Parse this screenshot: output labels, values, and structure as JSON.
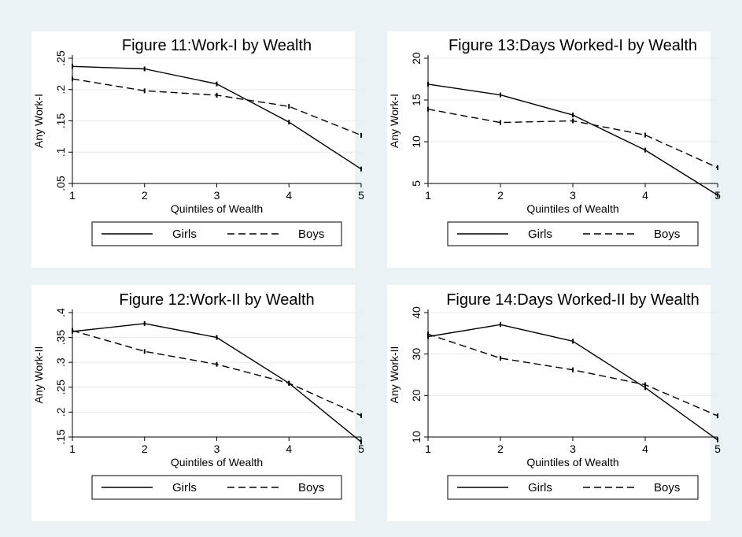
{
  "chart_data": [
    {
      "type": "line",
      "title": "Figure 11:Work-I by Wealth",
      "xlabel": "Quintiles of Wealth",
      "ylabel": "Any Work-I",
      "x": [
        1,
        2,
        3,
        4,
        5
      ],
      "xticks": [
        "1",
        "2",
        "3",
        "4",
        "5"
      ],
      "yticks": [
        ".05",
        ".1",
        ".15",
        ".2",
        ".25"
      ],
      "ylim": [
        0.05,
        0.25
      ],
      "series": [
        {
          "name": "Girls",
          "style": "solid",
          "values": [
            0.237,
            0.233,
            0.209,
            0.148,
            0.073
          ]
        },
        {
          "name": "Boys",
          "style": "dashed",
          "values": [
            0.217,
            0.198,
            0.191,
            0.173,
            0.127
          ]
        }
      ],
      "legend": {
        "position": "bottom"
      }
    },
    {
      "type": "line",
      "title": "Figure 13:Days Worked-I by Wealth",
      "xlabel": "Quintiles of Wealth",
      "ylabel": "Any Work-I",
      "x": [
        1,
        2,
        3,
        4,
        5
      ],
      "xticks": [
        "1",
        "2",
        "3",
        "4",
        "5"
      ],
      "yticks": [
        "5",
        "10",
        "15",
        "20"
      ],
      "ylim": [
        5,
        20
      ],
      "series": [
        {
          "name": "Girls",
          "style": "solid",
          "values": [
            16.9,
            15.6,
            13.2,
            9.0,
            3.6
          ]
        },
        {
          "name": "Boys",
          "style": "dashed",
          "values": [
            13.9,
            12.3,
            12.5,
            10.8,
            6.9
          ]
        }
      ],
      "legend": {
        "position": "bottom"
      }
    },
    {
      "type": "line",
      "title": "Figure 12:Work-II by Wealth",
      "xlabel": "Quintiles of Wealth",
      "ylabel": "Any Work-II",
      "x": [
        1,
        2,
        3,
        4,
        5
      ],
      "xticks": [
        "1",
        "2",
        "3",
        "4",
        "5"
      ],
      "yticks": [
        ".15",
        ".2",
        ".25",
        ".3",
        ".35",
        ".4"
      ],
      "ylim": [
        0.15,
        0.4
      ],
      "series": [
        {
          "name": "Girls",
          "style": "solid",
          "values": [
            0.362,
            0.378,
            0.35,
            0.258,
            0.14
          ]
        },
        {
          "name": "Boys",
          "style": "dashed",
          "values": [
            0.364,
            0.322,
            0.296,
            0.258,
            0.193
          ]
        }
      ],
      "legend": {
        "position": "bottom"
      }
    },
    {
      "type": "line",
      "title": "Figure 14:Days Worked-II by Wealth",
      "xlabel": "Quintiles of Wealth",
      "ylabel": "Any Work-II",
      "x": [
        1,
        2,
        3,
        4,
        5
      ],
      "xticks": [
        "1",
        "2",
        "3",
        "4",
        "5"
      ],
      "yticks": [
        "10",
        "20",
        "30",
        "40"
      ],
      "ylim": [
        10,
        40
      ],
      "series": [
        {
          "name": "Girls",
          "style": "solid",
          "values": [
            34.2,
            37.1,
            33.1,
            21.9,
            9.3
          ]
        },
        {
          "name": "Boys",
          "style": "dashed",
          "values": [
            34.8,
            29.0,
            26.2,
            22.6,
            15.1
          ]
        }
      ],
      "legend": {
        "position": "bottom"
      }
    }
  ]
}
